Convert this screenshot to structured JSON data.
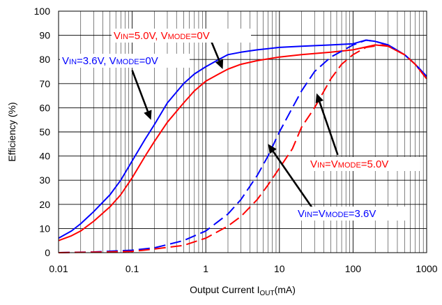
{
  "chart_data": {
    "type": "line",
    "title": "",
    "xlabel": "Output Current I",
    "xlabel_sub": "OUT",
    "xlabel_suffix": "(mA)",
    "ylabel": "Efficiency (%)",
    "xscale": "log",
    "xlim": [
      0.01,
      1000
    ],
    "ylim": [
      0,
      100
    ],
    "grid": true,
    "x_ticks": [
      0.01,
      0.1,
      1,
      10,
      100,
      1000
    ],
    "x_tick_labels": [
      "0.01",
      "0.1",
      "1",
      "10",
      "100",
      "1000"
    ],
    "y_ticks": [
      0,
      10,
      20,
      30,
      40,
      50,
      60,
      70,
      80,
      90,
      100
    ],
    "y_tick_labels": [
      "0",
      "10",
      "20",
      "30",
      "40",
      "50",
      "60",
      "70",
      "80",
      "90",
      "100"
    ],
    "series": [
      {
        "color": "#0000ff",
        "dash": "solid",
        "points": [
          [
            0.01,
            6
          ],
          [
            0.015,
            9
          ],
          [
            0.02,
            12
          ],
          [
            0.03,
            17
          ],
          [
            0.05,
            24
          ],
          [
            0.07,
            30
          ],
          [
            0.1,
            38
          ],
          [
            0.15,
            47
          ],
          [
            0.2,
            53
          ],
          [
            0.3,
            62
          ],
          [
            0.5,
            70
          ],
          [
            0.7,
            74
          ],
          [
            1,
            77
          ],
          [
            1.5,
            80
          ],
          [
            2,
            82
          ],
          [
            3,
            83
          ],
          [
            5,
            84
          ],
          [
            10,
            85
          ],
          [
            20,
            85.5
          ],
          [
            50,
            86
          ],
          [
            100,
            86.5
          ],
          [
            150,
            88
          ],
          [
            200,
            87.5
          ],
          [
            300,
            86
          ],
          [
            500,
            82
          ],
          [
            700,
            78
          ],
          [
            1000,
            73
          ]
        ]
      },
      {
        "color": "#ff0000",
        "dash": "solid",
        "points": [
          [
            0.01,
            5
          ],
          [
            0.015,
            7
          ],
          [
            0.02,
            9
          ],
          [
            0.03,
            13
          ],
          [
            0.05,
            19
          ],
          [
            0.07,
            24
          ],
          [
            0.1,
            31
          ],
          [
            0.15,
            40
          ],
          [
            0.2,
            46
          ],
          [
            0.3,
            54
          ],
          [
            0.5,
            62
          ],
          [
            0.7,
            67
          ],
          [
            1,
            71
          ],
          [
            1.5,
            74
          ],
          [
            2,
            76
          ],
          [
            3,
            78
          ],
          [
            5,
            79.5
          ],
          [
            10,
            81
          ],
          [
            20,
            82
          ],
          [
            50,
            83
          ],
          [
            100,
            84
          ],
          [
            200,
            86
          ],
          [
            300,
            85.5
          ],
          [
            500,
            82
          ],
          [
            700,
            78
          ],
          [
            1000,
            72
          ]
        ]
      },
      {
        "color": "#0000ff",
        "dash": "dashed",
        "points": [
          [
            0.01,
            0
          ],
          [
            0.03,
            0.3
          ],
          [
            0.1,
            1
          ],
          [
            0.2,
            2
          ],
          [
            0.5,
            5
          ],
          [
            1,
            9
          ],
          [
            2,
            16
          ],
          [
            3,
            22
          ],
          [
            5,
            32
          ],
          [
            7,
            40
          ],
          [
            10,
            50
          ],
          [
            15,
            60
          ],
          [
            20,
            67
          ],
          [
            30,
            75
          ],
          [
            50,
            81
          ],
          [
            100,
            86
          ],
          [
            150,
            88
          ],
          [
            200,
            87.5
          ],
          [
            300,
            86
          ],
          [
            500,
            82
          ],
          [
            700,
            78
          ],
          [
            1000,
            73
          ]
        ]
      },
      {
        "color": "#ff0000",
        "dash": "dashed",
        "points": [
          [
            0.01,
            0
          ],
          [
            0.03,
            0.2
          ],
          [
            0.1,
            0.5
          ],
          [
            0.2,
            1.5
          ],
          [
            0.5,
            3
          ],
          [
            1,
            6
          ],
          [
            2,
            11
          ],
          [
            3,
            15
          ],
          [
            5,
            22
          ],
          [
            7,
            28
          ],
          [
            10,
            35
          ],
          [
            15,
            43
          ],
          [
            20,
            52
          ],
          [
            30,
            60
          ],
          [
            50,
            72
          ],
          [
            70,
            78
          ],
          [
            100,
            82
          ],
          [
            150,
            85
          ],
          [
            250,
            86
          ],
          [
            300,
            85.5
          ],
          [
            500,
            82
          ],
          [
            700,
            78
          ],
          [
            1000,
            72
          ]
        ]
      }
    ],
    "annotations": [
      {
        "color": "#ff0000",
        "parts": [
          {
            "t": "V",
            "s": "n"
          },
          {
            "t": "IN",
            "s": "s"
          },
          {
            "t": "=5.0V, V",
            "s": "n"
          },
          {
            "t": "MODE",
            "s": "s"
          },
          {
            "t": "=0V",
            "s": "n"
          }
        ],
        "arrow_from": [
          1.15,
          88.5
        ],
        "arrow_to": [
          1.7,
          76
        ]
      },
      {
        "color": "#0000ff",
        "parts": [
          {
            "t": "V",
            "s": "n"
          },
          {
            "t": "IN",
            "s": "s"
          },
          {
            "t": "=3.6V, V",
            "s": "n"
          },
          {
            "t": "MODE",
            "s": "s"
          },
          {
            "t": "=0V",
            "s": "n"
          }
        ],
        "arrow_from": [
          0.1,
          75.5
        ],
        "arrow_to": [
          0.18,
          55
        ]
      },
      {
        "color": "#ff0000",
        "parts": [
          {
            "t": "V",
            "s": "n"
          },
          {
            "t": "IN",
            "s": "s"
          },
          {
            "t": "=V",
            "s": "n"
          },
          {
            "t": "MODE",
            "s": "s"
          },
          {
            "t": "=5.0V",
            "s": "n"
          }
        ],
        "arrow_from": [
          62,
          40.5
        ],
        "arrow_to": [
          32,
          66
        ]
      },
      {
        "color": "#0000ff",
        "parts": [
          {
            "t": "V",
            "s": "n"
          },
          {
            "t": "IN",
            "s": "s"
          },
          {
            "t": "=V",
            "s": "n"
          },
          {
            "t": "MODE",
            "s": "s"
          },
          {
            "t": "=3.6V",
            "s": "n"
          }
        ],
        "arrow_from": [
          28,
          18.5
        ],
        "arrow_to": [
          7,
          45
        ]
      }
    ]
  }
}
